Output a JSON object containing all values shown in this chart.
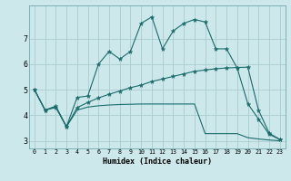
{
  "xlabel": "Humidex (Indice chaleur)",
  "bg_color": "#cce8ea",
  "grid_color": "#aaccce",
  "line_color": "#1a6b6b",
  "xlim": [
    -0.5,
    23.5
  ],
  "ylim": [
    2.7,
    8.3
  ],
  "yticks": [
    3,
    4,
    5,
    6,
    7
  ],
  "xticks": [
    0,
    1,
    2,
    3,
    4,
    5,
    6,
    7,
    8,
    9,
    10,
    11,
    12,
    13,
    14,
    15,
    16,
    17,
    18,
    19,
    20,
    21,
    22,
    23
  ],
  "line1_x": [
    0,
    1,
    2,
    3,
    4,
    5,
    6,
    7,
    8,
    9,
    10,
    11,
    12,
    13,
    14,
    15,
    16,
    17,
    18,
    19,
    20,
    21,
    22,
    23
  ],
  "line1_y": [
    5.0,
    4.2,
    4.3,
    3.55,
    4.7,
    4.75,
    6.0,
    6.5,
    6.2,
    6.5,
    7.6,
    7.85,
    6.6,
    7.3,
    7.6,
    7.75,
    7.65,
    6.6,
    6.6,
    5.85,
    4.45,
    3.85,
    3.25,
    3.05
  ],
  "line2_x": [
    0,
    1,
    2,
    3,
    4,
    5,
    6,
    7,
    8,
    9,
    10,
    11,
    12,
    13,
    14,
    15,
    16,
    17,
    18,
    19,
    20,
    21,
    22,
    23
  ],
  "line2_y": [
    5.0,
    4.2,
    4.35,
    3.55,
    4.3,
    4.5,
    4.68,
    4.82,
    4.95,
    5.08,
    5.18,
    5.32,
    5.42,
    5.52,
    5.62,
    5.72,
    5.77,
    5.82,
    5.85,
    5.87,
    5.88,
    4.2,
    3.3,
    3.05
  ],
  "line3_x": [
    0,
    1,
    2,
    3,
    4,
    5,
    6,
    7,
    8,
    9,
    10,
    11,
    12,
    13,
    14,
    15,
    16,
    17,
    18,
    19,
    20,
    21,
    22,
    23
  ],
  "line3_y": [
    5.0,
    4.2,
    4.35,
    3.55,
    4.2,
    4.32,
    4.37,
    4.4,
    4.42,
    4.43,
    4.44,
    4.44,
    4.44,
    4.44,
    4.44,
    4.44,
    3.28,
    3.28,
    3.28,
    3.28,
    3.12,
    3.07,
    3.03,
    3.0
  ]
}
